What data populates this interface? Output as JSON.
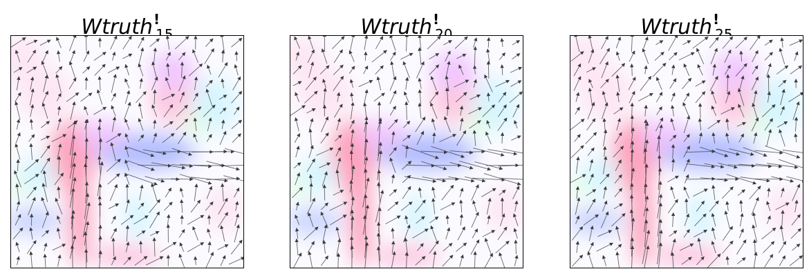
{
  "panels": [
    {
      "title_main": "Wtruth",
      "title_mark": "!",
      "title_sub": "15"
    },
    {
      "title_main": "Wtruth",
      "title_mark": "!",
      "title_sub": "20"
    },
    {
      "title_main": "Wtruth",
      "title_mark": "!",
      "title_sub": "25"
    }
  ],
  "colors": {
    "arrow": "#3c3c3c",
    "frame": "#000000",
    "blobs": [
      "#ff5c8a",
      "#ff9ec8",
      "#7a8cff",
      "#a3b6ff",
      "#b8f0ff",
      "#c8ffc8",
      "#ffd6ea",
      "#e89cff"
    ]
  }
}
